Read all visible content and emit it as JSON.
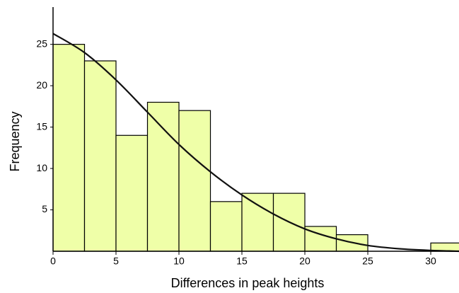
{
  "chart_data": {
    "type": "histogram",
    "x_label": "Differences in peak heights",
    "y_label": "Frequency",
    "bins": [
      0,
      2.5,
      5,
      7.5,
      10,
      12.5,
      15,
      17.5,
      20,
      22.5,
      25,
      27.5,
      30,
      32.5
    ],
    "counts": [
      25,
      23,
      14,
      18,
      17,
      6,
      7,
      7,
      3,
      2,
      0,
      0,
      1
    ],
    "color": "#efffa8",
    "edge_color": "#000000",
    "xlim": [
      0,
      32.3
    ],
    "ylim": [
      0,
      29.5
    ],
    "xticks": [
      0,
      5,
      10,
      15,
      20,
      25,
      30
    ],
    "yticks": [
      5,
      10,
      15,
      20,
      25
    ],
    "curve": {
      "type": "line",
      "color": "#111111",
      "x": [
        0,
        2.5,
        5,
        7.5,
        10,
        12.5,
        15,
        17.5,
        20,
        22.5,
        25,
        27.5,
        30,
        32.3
      ],
      "values": [
        26.3,
        24.0,
        20.7,
        16.8,
        12.9,
        9.6,
        6.8,
        4.5,
        2.7,
        1.5,
        0.7,
        0.3,
        0.1,
        0.0
      ]
    }
  }
}
